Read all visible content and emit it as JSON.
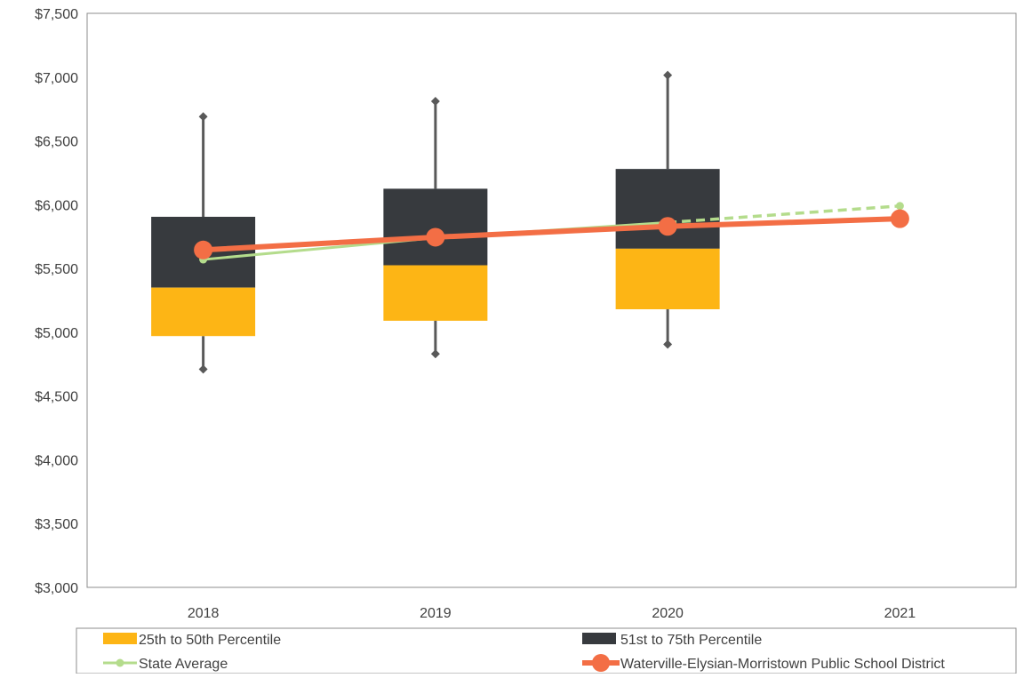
{
  "chart_data": {
    "type": "box",
    "categories": [
      "2018",
      "2019",
      "2020",
      "2021"
    ],
    "y_ticks": [
      "$3,000",
      "$3,500",
      "$4,000",
      "$4,500",
      "$5,000",
      "$5,500",
      "$6,000",
      "$6,500",
      "$7,000",
      "$7,500"
    ],
    "ylim": [
      3000,
      7500
    ],
    "grid": false,
    "legend_position": "bottom",
    "boxes": [
      {
        "category": "2018",
        "min": 4710,
        "q1": 4970,
        "median": 5350,
        "q3": 5905,
        "max": 6690
      },
      {
        "category": "2019",
        "min": 4830,
        "q1": 5090,
        "median": 5525,
        "q3": 6125,
        "max": 6810
      },
      {
        "category": "2020",
        "min": 4905,
        "q1": 5180,
        "median": 5655,
        "q3": 6280,
        "max": 7015
      }
    ],
    "series": [
      {
        "name": "State Average",
        "x": [
          "2018",
          "2019",
          "2020",
          "2021"
        ],
        "values": [
          5570,
          5740,
          5860,
          5990
        ]
      },
      {
        "name": "Waterville-Elysian-Morristown Public School District",
        "x": [
          "2018",
          "2019",
          "2020",
          "2021"
        ],
        "values": [
          5645,
          5745,
          5830,
          5890
        ]
      }
    ],
    "legend": [
      {
        "label": "25th to 50th Percentile",
        "color": "#FDB515"
      },
      {
        "label": "51st to 75th Percentile",
        "color": "#373A3E"
      },
      {
        "label": "State Average",
        "color": "#B4DC8C"
      },
      {
        "label": "Waterville-Elysian-Morristown Public School District",
        "color": "#F36E45"
      }
    ]
  }
}
